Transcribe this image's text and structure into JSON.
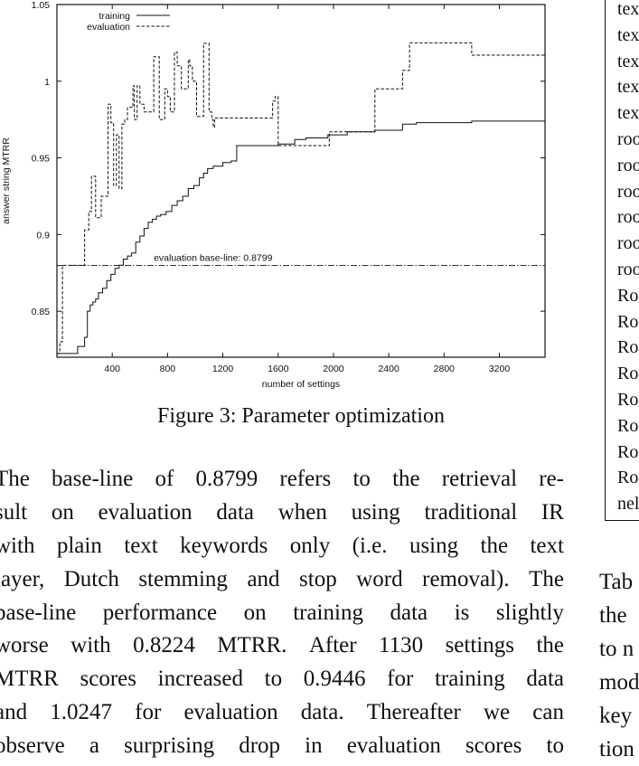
{
  "chart_data": {
    "type": "line",
    "xlabel": "number of settings",
    "ylabel": "answer string MTRR",
    "xlim": [
      0,
      3530
    ],
    "ylim": [
      0.82,
      1.05
    ],
    "xticks": [
      400,
      800,
      1200,
      1600,
      2000,
      2400,
      2800,
      3200
    ],
    "yticks": [
      0.85,
      0.9,
      0.95,
      1,
      1.05
    ],
    "ytick_labels": [
      "0.85",
      "0.9",
      "0.95",
      "1",
      "1.05"
    ],
    "legend_position": "top-left",
    "series": [
      {
        "name": "training",
        "style": "solid",
        "color": "#111111",
        "x": [
          0,
          20,
          150,
          200,
          220,
          240,
          260,
          280,
          300,
          330,
          360,
          390,
          420,
          450,
          480,
          510,
          540,
          570,
          600,
          630,
          660,
          690,
          720,
          750,
          790,
          830,
          870,
          910,
          950,
          990,
          1030,
          1060,
          1090,
          1130,
          1200,
          1260,
          1300,
          1600,
          1720,
          1800,
          1960,
          2100,
          2300,
          2500,
          2600,
          3000,
          3530
        ],
        "y": [
          0.8224,
          0.8224,
          0.827,
          0.833,
          0.85,
          0.854,
          0.856,
          0.858,
          0.862,
          0.865,
          0.87,
          0.874,
          0.878,
          0.88,
          0.884,
          0.886,
          0.888,
          0.895,
          0.899,
          0.904,
          0.908,
          0.91,
          0.912,
          0.913,
          0.915,
          0.919,
          0.922,
          0.925,
          0.93,
          0.932,
          0.937,
          0.94,
          0.943,
          0.9446,
          0.947,
          0.948,
          0.958,
          0.959,
          0.962,
          0.963,
          0.965,
          0.967,
          0.968,
          0.972,
          0.973,
          0.974,
          0.975
        ]
      },
      {
        "name": "evaluation",
        "style": "dashed",
        "color": "#111111",
        "x": [
          0,
          20,
          40,
          150,
          200,
          230,
          250,
          280,
          320,
          370,
          390,
          410,
          430,
          450,
          470,
          490,
          510,
          550,
          560,
          580,
          600,
          630,
          660,
          700,
          720,
          740,
          780,
          800,
          820,
          850,
          870,
          900,
          950,
          960,
          980,
          1010,
          1040,
          1060,
          1080,
          1100,
          1120,
          1130,
          1140,
          1160,
          1190,
          1230,
          1280,
          1300,
          1560,
          1580,
          1600,
          1620,
          1650,
          1950,
          1970,
          2100,
          2300,
          2500,
          2550,
          2800,
          3000,
          3530
        ],
        "y": [
          0.8224,
          0.83,
          0.8799,
          0.8799,
          0.903,
          0.915,
          0.938,
          0.911,
          0.925,
          0.985,
          0.973,
          0.932,
          0.965,
          0.93,
          0.972,
          0.975,
          0.983,
          0.997,
          0.975,
          0.997,
          0.985,
          0.98,
          0.98,
          1.016,
          1.016,
          0.975,
          0.995,
          0.99,
          0.98,
          1.019,
          1.01,
          0.995,
          1.014,
          1.01,
          1.0,
          0.977,
          0.977,
          1.0247,
          1.0247,
          0.98,
          0.975,
          0.97,
          0.976,
          0.976,
          0.976,
          0.976,
          0.976,
          0.976,
          0.987,
          0.99,
          0.958,
          0.958,
          0.958,
          0.958,
          0.967,
          0.967,
          0.995,
          1.007,
          1.025,
          1.025,
          1.017,
          1.017
        ]
      }
    ],
    "baseline": {
      "y": 0.8799,
      "label": "evaluation base-line: 0.8799",
      "style": "dash-dot"
    }
  },
  "caption": "Figure 3: Parameter optimization",
  "body_lines": [
    [
      "The",
      "base-line",
      "of",
      "0.8799",
      "refers",
      "to",
      "the",
      "retrieval",
      "re-"
    ],
    [
      "sult",
      "on",
      "evaluation",
      "data",
      "when",
      "using",
      "traditional",
      "IR"
    ],
    [
      "with",
      "plain",
      "text",
      "keywords",
      "only",
      "(i.e.",
      "using",
      "the",
      "text"
    ],
    [
      "layer,",
      "Dutch",
      "stemming",
      "and",
      "stop",
      "word",
      "removal).",
      "The"
    ],
    [
      "base-line",
      "performance",
      "on",
      "training",
      "data",
      "is",
      "slightly"
    ],
    [
      "worse",
      "with",
      "0.8224",
      "MTRR.",
      "After",
      "1130",
      "settings",
      "the"
    ],
    [
      "MTRR",
      "scores",
      "increased",
      "to",
      "0.9446",
      "for",
      "training",
      "data"
    ],
    [
      "and",
      "1.0247",
      "for",
      "evaluation",
      "data.",
      "Thereafter",
      "we",
      "can"
    ],
    [
      "observe",
      "a",
      "surprising",
      "drop",
      "in",
      "evaluation",
      "scores",
      "to"
    ]
  ],
  "table_cells": [
    "tex",
    "tex",
    "tex",
    "tex",
    "tex",
    "roo",
    "roo",
    "roo",
    "roo",
    "roo",
    "roo",
    "Ro",
    "Ro",
    "Ro",
    "Ro",
    "Ro",
    "Ro",
    "Ro",
    "Ro",
    "nel"
  ],
  "right_text": [
    "Tab",
    "the",
    "to n",
    "mod",
    "key",
    "tion"
  ]
}
